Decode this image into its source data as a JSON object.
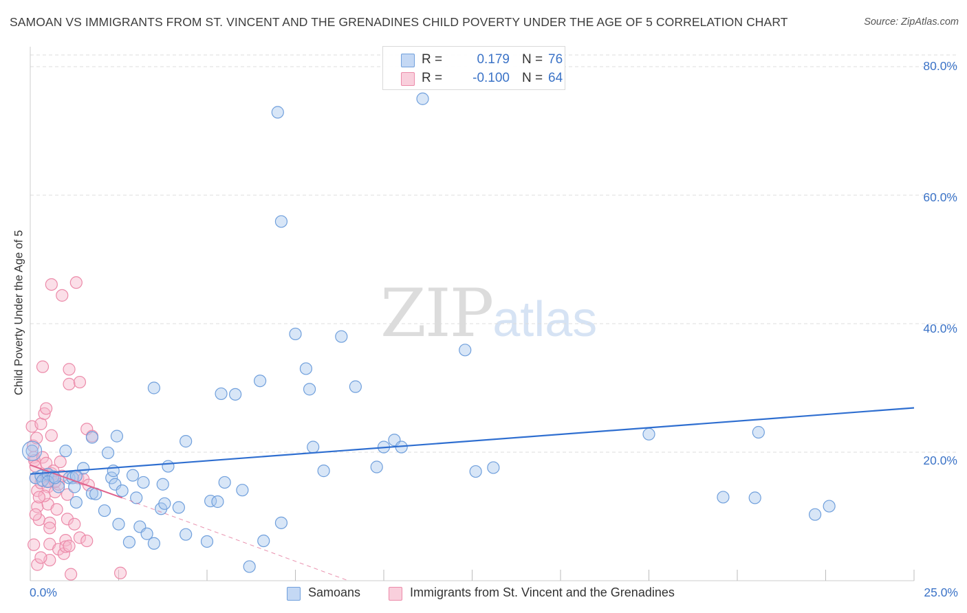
{
  "title": "SAMOAN VS IMMIGRANTS FROM ST. VINCENT AND THE GRENADINES CHILD POVERTY UNDER THE AGE OF 5 CORRELATION CHART",
  "source": "Source: ZipAtlas.com",
  "watermark": {
    "zip": "ZIP",
    "atlas": "atlas"
  },
  "legend": {
    "rows": [
      {
        "r_label": "R =",
        "r_value": "0.179",
        "n_label": "N =",
        "n_value": "76",
        "color": "#a9c7ee"
      },
      {
        "r_label": "R =",
        "r_value": "-0.100",
        "n_label": "N =",
        "n_value": "64",
        "color": "#f6b8cb"
      }
    ]
  },
  "bottom_legend": [
    {
      "label": "Samoans",
      "color": "#a9c7ee"
    },
    {
      "label": "Immigrants from St. Vincent and the Grenadines",
      "color": "#f6b8cb"
    }
  ],
  "colors": {
    "samoan_fill": "#a9c7ee",
    "samoan_stroke": "#6f9fdc",
    "samoan_line": "#2e6ed0",
    "svg_fill": "#f6b8cb",
    "svg_stroke": "#ec8aa9",
    "svg_line": "#e0628c",
    "tick_text": "#3b73c7",
    "grid": "#dddddd"
  },
  "chart_data": {
    "type": "scatter",
    "title": "SAMOAN VS IMMIGRANTS FROM ST. VINCENT AND THE GRENADINES CHILD POVERTY UNDER THE AGE OF 5 CORRELATION CHART",
    "xlabel": "",
    "ylabel": "Child Poverty Under the Age of 5",
    "xlim": [
      0,
      25
    ],
    "ylim": [
      0,
      80
    ],
    "x_tick_labels": [
      "0.0%",
      "25.0%"
    ],
    "y_tick_labels": [
      {
        "value": 80,
        "label": "80.0%"
      },
      {
        "value": 60,
        "label": "60.0%"
      },
      {
        "value": 40,
        "label": "40.0%"
      },
      {
        "value": 20,
        "label": "20.0%"
      }
    ],
    "grid": true,
    "legend_position": "top-center",
    "series": [
      {
        "name": "Samoans",
        "r": 0.179,
        "n": 76,
        "trend": {
          "x": [
            0.0,
            25.0
          ],
          "y": [
            16.6,
            26.9
          ]
        },
        "points": [
          [
            0.05,
            20.2
          ],
          [
            0.15,
            16.0
          ],
          [
            0.3,
            16.3
          ],
          [
            0.35,
            15.6
          ],
          [
            0.5,
            16.6
          ],
          [
            0.65,
            16.2
          ],
          [
            0.8,
            14.6
          ],
          [
            1.0,
            20.2
          ],
          [
            1.1,
            16.0
          ],
          [
            1.2,
            16.0
          ],
          [
            1.25,
            14.6
          ],
          [
            1.3,
            12.2
          ],
          [
            1.5,
            17.5
          ],
          [
            1.75,
            13.6
          ],
          [
            1.85,
            13.5
          ],
          [
            1.75,
            22.3
          ],
          [
            2.1,
            10.9
          ],
          [
            2.2,
            19.9
          ],
          [
            2.3,
            16.0
          ],
          [
            2.35,
            17.1
          ],
          [
            2.4,
            15.0
          ],
          [
            2.45,
            22.5
          ],
          [
            2.5,
            8.8
          ],
          [
            2.6,
            14.0
          ],
          [
            2.8,
            6.0
          ],
          [
            2.9,
            16.4
          ],
          [
            3.0,
            12.9
          ],
          [
            3.1,
            8.4
          ],
          [
            3.2,
            15.3
          ],
          [
            3.3,
            7.3
          ],
          [
            3.5,
            5.8
          ],
          [
            3.75,
            15.0
          ],
          [
            3.7,
            11.2
          ],
          [
            3.8,
            12.0
          ],
          [
            3.9,
            17.8
          ],
          [
            3.5,
            30.0
          ],
          [
            4.4,
            21.7
          ],
          [
            4.4,
            7.2
          ],
          [
            4.2,
            11.4
          ],
          [
            5.0,
            6.1
          ],
          [
            5.1,
            12.4
          ],
          [
            5.3,
            12.3
          ],
          [
            5.4,
            29.1
          ],
          [
            5.5,
            15.3
          ],
          [
            5.8,
            29.0
          ],
          [
            6.0,
            14.1
          ],
          [
            6.2,
            2.2
          ],
          [
            6.5,
            31.1
          ],
          [
            6.6,
            6.2
          ],
          [
            7.1,
            9.0
          ],
          [
            7.0,
            72.9
          ],
          [
            7.1,
            55.9
          ],
          [
            7.5,
            38.4
          ],
          [
            7.8,
            33.0
          ],
          [
            7.9,
            29.8
          ],
          [
            8.0,
            20.8
          ],
          [
            8.3,
            17.1
          ],
          [
            8.8,
            38.0
          ],
          [
            9.2,
            30.2
          ],
          [
            9.8,
            17.7
          ],
          [
            10.0,
            20.8
          ],
          [
            10.3,
            21.9
          ],
          [
            10.5,
            20.8
          ],
          [
            11.1,
            75.0
          ],
          [
            12.3,
            35.9
          ],
          [
            12.6,
            17.0
          ],
          [
            13.1,
            17.6
          ],
          [
            17.5,
            22.8
          ],
          [
            19.6,
            13.0
          ],
          [
            20.5,
            12.9
          ],
          [
            20.6,
            23.1
          ],
          [
            22.2,
            10.3
          ],
          [
            22.6,
            11.6
          ],
          [
            1.3,
            16.3
          ],
          [
            0.5,
            15.4
          ],
          [
            0.7,
            16.0
          ]
        ]
      },
      {
        "name": "Immigrants from St. Vincent and the Grenadines",
        "r": -0.1,
        "n": 64,
        "trend": {
          "x": [
            0.0,
            2.6
          ],
          "y": [
            18.0,
            12.9
          ]
        },
        "trend_extended": {
          "x": [
            2.6,
            9.0
          ],
          "y": [
            12.9,
            0.0
          ]
        },
        "points": [
          [
            0.05,
            24.0
          ],
          [
            0.08,
            21.0
          ],
          [
            0.1,
            19.2
          ],
          [
            0.12,
            18.7
          ],
          [
            0.15,
            17.8
          ],
          [
            0.15,
            16.0
          ],
          [
            0.18,
            22.2
          ],
          [
            0.2,
            14.0
          ],
          [
            0.2,
            11.5
          ],
          [
            0.25,
            9.5
          ],
          [
            0.3,
            15.2
          ],
          [
            0.3,
            24.4
          ],
          [
            0.35,
            19.2
          ],
          [
            0.35,
            33.3
          ],
          [
            0.4,
            26.0
          ],
          [
            0.45,
            26.8
          ],
          [
            0.45,
            18.3
          ],
          [
            0.5,
            15.5
          ],
          [
            0.5,
            14.6
          ],
          [
            0.5,
            11.9
          ],
          [
            0.55,
            9.0
          ],
          [
            0.55,
            8.2
          ],
          [
            0.55,
            5.7
          ],
          [
            0.55,
            3.2
          ],
          [
            0.6,
            22.6
          ],
          [
            0.6,
            16.7
          ],
          [
            0.6,
            46.1
          ],
          [
            0.65,
            15.9
          ],
          [
            0.7,
            13.8
          ],
          [
            0.75,
            11.1
          ],
          [
            0.8,
            4.9
          ],
          [
            0.8,
            15.0
          ],
          [
            0.85,
            18.5
          ],
          [
            0.9,
            16.3
          ],
          [
            0.9,
            44.4
          ],
          [
            0.95,
            4.2
          ],
          [
            1.0,
            6.3
          ],
          [
            1.0,
            5.3
          ],
          [
            1.05,
            9.6
          ],
          [
            1.05,
            13.4
          ],
          [
            1.1,
            32.9
          ],
          [
            1.1,
            30.6
          ],
          [
            1.1,
            5.4
          ],
          [
            1.15,
            1.0
          ],
          [
            1.25,
            8.8
          ],
          [
            1.3,
            46.4
          ],
          [
            1.35,
            16.0
          ],
          [
            1.4,
            6.7
          ],
          [
            1.4,
            30.9
          ],
          [
            1.5,
            15.8
          ],
          [
            1.6,
            23.6
          ],
          [
            1.6,
            6.2
          ],
          [
            1.65,
            14.9
          ],
          [
            1.75,
            22.5
          ],
          [
            0.2,
            2.5
          ],
          [
            0.3,
            3.6
          ],
          [
            0.4,
            13.2
          ],
          [
            0.7,
            15.4
          ],
          [
            0.1,
            5.6
          ],
          [
            0.15,
            10.3
          ],
          [
            0.25,
            13.0
          ],
          [
            0.5,
            16.4
          ],
          [
            2.55,
            1.2
          ],
          [
            0.65,
            17.1
          ]
        ]
      }
    ]
  }
}
